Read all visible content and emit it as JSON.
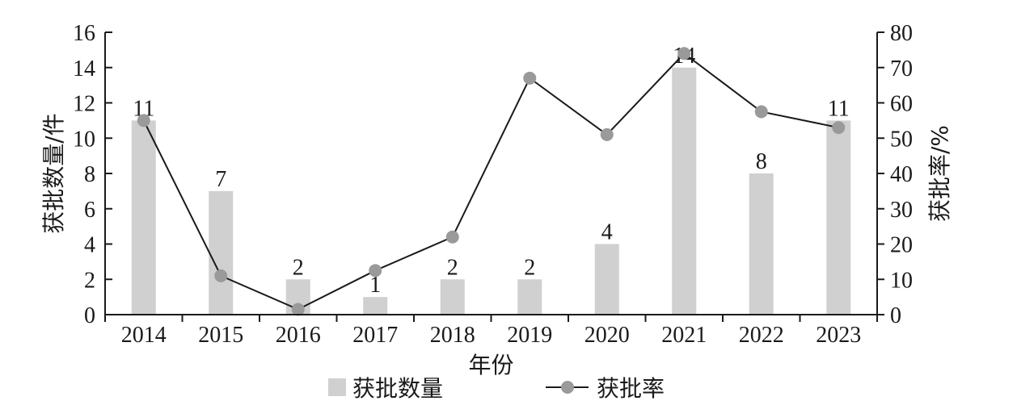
{
  "chart_data": {
    "type": "bar",
    "categories": [
      "2014",
      "2015",
      "2016",
      "2017",
      "2018",
      "2019",
      "2020",
      "2021",
      "2022",
      "2023"
    ],
    "series": [
      {
        "name": "获批数量",
        "type": "bar",
        "axis": "left",
        "values": [
          11,
          7,
          2,
          1,
          2,
          2,
          4,
          14,
          8,
          11
        ],
        "color": "#d0d0d0"
      },
      {
        "name": "获批率",
        "type": "line",
        "axis": "right",
        "values": [
          55,
          11,
          1.5,
          12.5,
          22,
          67,
          51,
          74,
          57.5,
          53
        ],
        "color": "#1a1a1a",
        "marker_color": "#9a9a9a"
      }
    ],
    "xlabel": "年份",
    "ylabel_left": "获批数量/件",
    "ylabel_right": "获批率/%",
    "ylim_left": [
      0,
      16
    ],
    "yticks_left": [
      0,
      2,
      4,
      6,
      8,
      10,
      12,
      14,
      16
    ],
    "ylim_right": [
      0,
      80
    ],
    "yticks_right": [
      0,
      10,
      20,
      30,
      40,
      50,
      60,
      70,
      80
    ],
    "bar_data_labels": [
      "11",
      "7",
      "2",
      "1",
      "2",
      "2",
      "4",
      "14",
      "8",
      "11"
    ],
    "grid": false,
    "legend": "bottom-center"
  }
}
